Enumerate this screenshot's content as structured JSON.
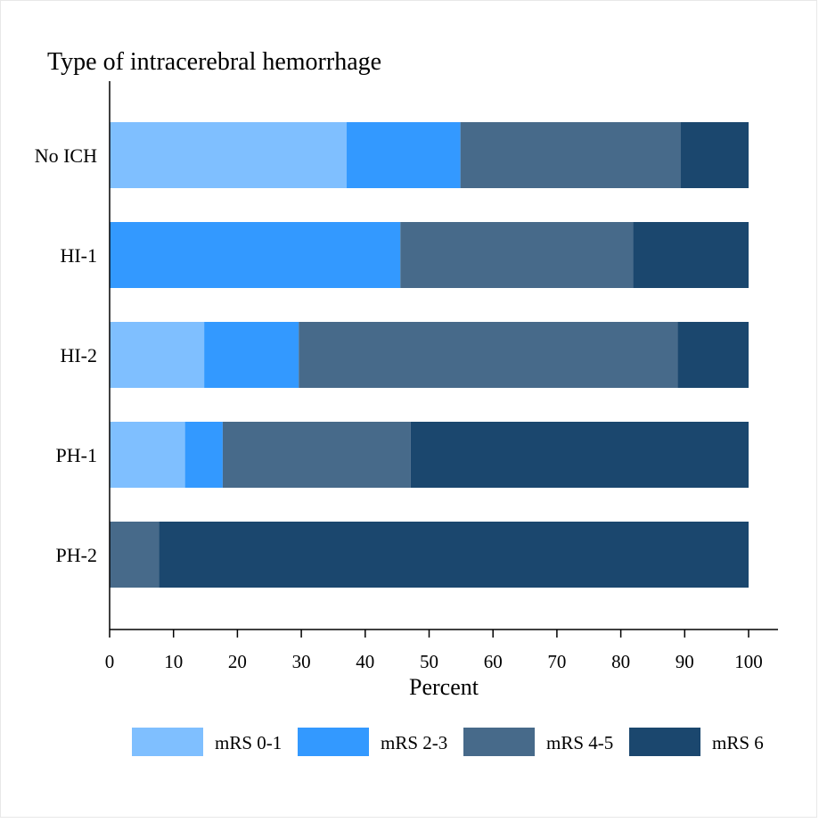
{
  "chart_data": {
    "type": "bar",
    "orientation": "horizontal",
    "stacked": true,
    "title": "Type of intracerebral hemorrhage",
    "xlabel": "Percent",
    "ylabel": "",
    "xlim": [
      0,
      100
    ],
    "xticks": [
      "0",
      "10",
      "20",
      "30",
      "40",
      "50",
      "60",
      "70",
      "80",
      "90",
      "100"
    ],
    "categories": [
      "No ICH",
      "HI-1",
      "HI-2",
      "PH-1",
      "PH-2"
    ],
    "series": [
      {
        "name": "mRS 0-1",
        "color": "#7fbfff",
        "values": [
          37.1,
          0,
          14.8,
          11.8,
          0
        ]
      },
      {
        "name": "mRS 2-3",
        "color": "#3399ff",
        "values": [
          17.8,
          45.5,
          14.8,
          5.9,
          0
        ]
      },
      {
        "name": "mRS 4-5",
        "color": "#476a8a",
        "values": [
          34.5,
          36.4,
          59.3,
          29.4,
          7.7
        ]
      },
      {
        "name": "mRS 6",
        "color": "#1b476e",
        "values": [
          10.6,
          18.1,
          11.1,
          52.9,
          92.3
        ]
      }
    ],
    "grid": false,
    "legend_position": "bottom"
  }
}
